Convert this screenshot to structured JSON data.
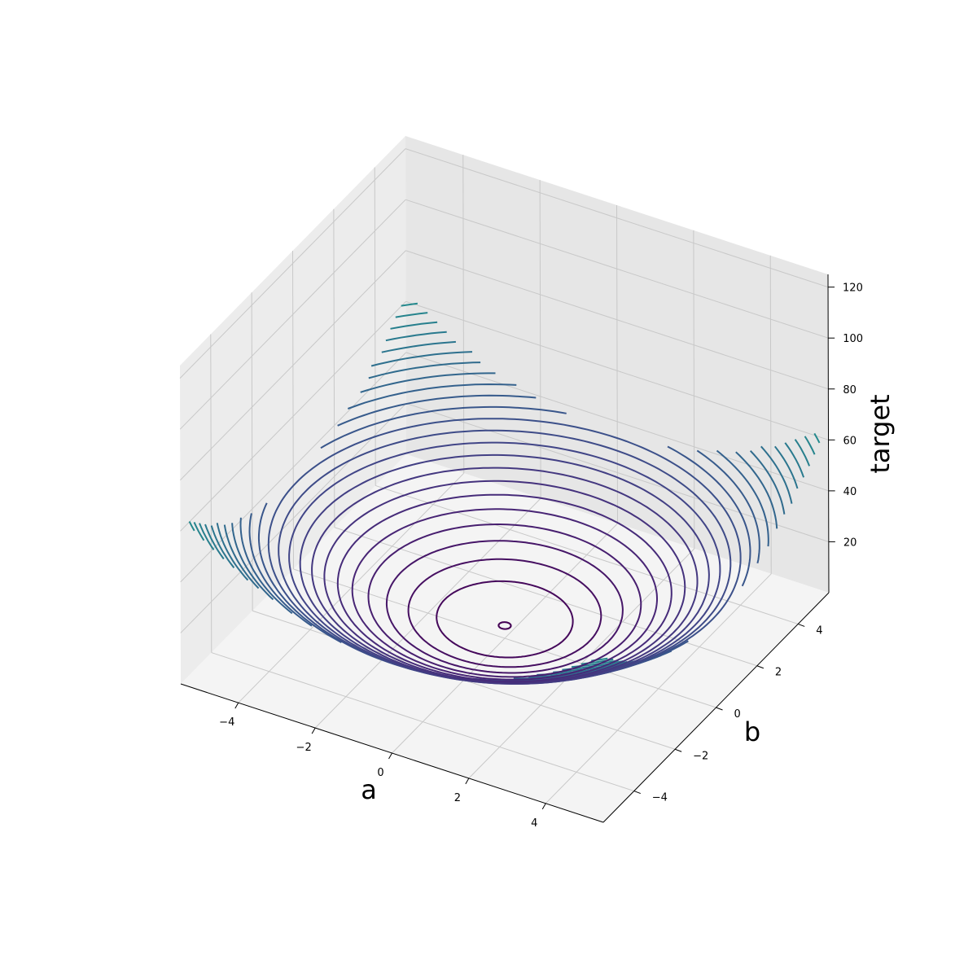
{
  "chart_data": {
    "type": "contour3d",
    "xlabel": "a",
    "ylabel": "b",
    "zlabel": "target",
    "x_ticks": [
      "−4",
      "−2",
      "0",
      "2",
      "4"
    ],
    "y_ticks": [
      "−4",
      "−2",
      "0",
      "2",
      "4"
    ],
    "z_ticks": [
      "20",
      "40",
      "60",
      "80",
      "100",
      "120"
    ],
    "xlim": [
      -5.5,
      5.5
    ],
    "ylim": [
      -5.5,
      5.5
    ],
    "zlim": [
      0,
      125
    ],
    "surface": "target = a^2 + b^2 + 5",
    "contour_levels": {
      "count": 50,
      "min": 5,
      "max": 125
    },
    "colormap": "viridis",
    "grid": true,
    "pane_color": "#f2f2f2"
  }
}
